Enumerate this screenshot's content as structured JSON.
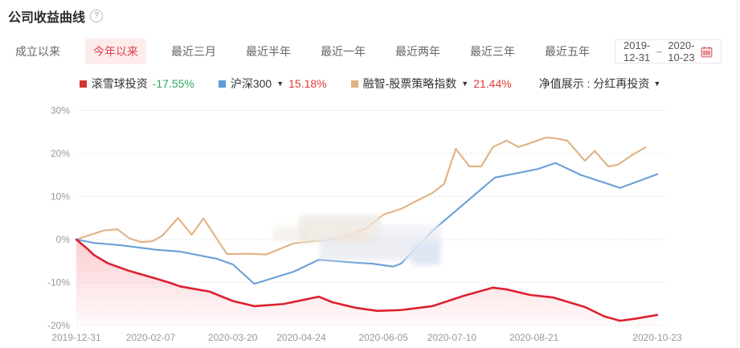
{
  "header": {
    "title": "公司收益曲线",
    "help_icon": "?"
  },
  "tabs": [
    {
      "label": "成立以来",
      "active": false
    },
    {
      "label": "今年以来",
      "active": true
    },
    {
      "label": "最近三月",
      "active": false
    },
    {
      "label": "最近半年",
      "active": false
    },
    {
      "label": "最近一年",
      "active": false
    },
    {
      "label": "最近两年",
      "active": false
    },
    {
      "label": "最近三年",
      "active": false
    },
    {
      "label": "最近五年",
      "active": false
    }
  ],
  "date_range": {
    "start": "2019-12-31",
    "separator": "~",
    "end": "2020-10-23"
  },
  "legend": [
    {
      "name": "滚雪球投资",
      "caret": "",
      "value": "-17.55%",
      "marker_color": "#d5342e",
      "value_color": "#2eab5e"
    },
    {
      "name": "沪深300",
      "caret": "▼",
      "value": "15.18%",
      "marker_color": "#5e9bd8",
      "value_color": "#e23b3b"
    },
    {
      "name": "融智-股票策略指数",
      "caret": "▼",
      "value": "21.44%",
      "marker_color": "#e2b184",
      "value_color": "#e23b3b"
    }
  ],
  "nav_display": {
    "label": "净值展示 : 分红再投资",
    "caret": "▼"
  },
  "chart_data": {
    "type": "line",
    "title": "公司收益曲线",
    "grid": true,
    "legend_position": "top",
    "y_axis": {
      "unit": "%",
      "ylim": [
        -20,
        30
      ],
      "ticks": [
        30,
        20,
        10,
        0,
        -10,
        -20
      ],
      "tick_suffix": "%"
    },
    "x_axis": {
      "type": "time",
      "total_days": 297,
      "ticks": [
        {
          "label": "2019-12-31",
          "day": 0
        },
        {
          "label": "2020-02-07",
          "day": 38
        },
        {
          "label": "2020-03-20",
          "day": 80
        },
        {
          "label": "2020-04-24",
          "day": 115
        },
        {
          "label": "2020-06-05",
          "day": 157
        },
        {
          "label": "2020-07-10",
          "day": 192
        },
        {
          "label": "2020-08-21",
          "day": 234
        },
        {
          "label": "2020-10-23",
          "day": 297
        }
      ]
    },
    "series": [
      {
        "name": "滚雪球投资",
        "color": "#dc2130",
        "final_value": -17.55,
        "area_fill": true,
        "points": [
          [
            0,
            0
          ],
          [
            6,
            -2.3
          ],
          [
            9,
            -3.6
          ],
          [
            16,
            -5.5
          ],
          [
            27,
            -7.3
          ],
          [
            40,
            -9.0
          ],
          [
            48,
            -10.1
          ],
          [
            53,
            -10.9
          ],
          [
            68,
            -12.1
          ],
          [
            80,
            -14.3
          ],
          [
            91,
            -15.5
          ],
          [
            106,
            -15.0
          ],
          [
            124,
            -13.3
          ],
          [
            131,
            -14.6
          ],
          [
            143,
            -15.9
          ],
          [
            154,
            -16.6
          ],
          [
            166,
            -16.4
          ],
          [
            182,
            -15.5
          ],
          [
            198,
            -13.1
          ],
          [
            213,
            -11.2
          ],
          [
            220,
            -11.6
          ],
          [
            232,
            -12.9
          ],
          [
            244,
            -13.5
          ],
          [
            260,
            -15.7
          ],
          [
            270,
            -17.9
          ],
          [
            278,
            -18.9
          ],
          [
            286,
            -18.4
          ],
          [
            297,
            -17.55
          ]
        ]
      },
      {
        "name": "沪深300",
        "color": "#6a9fd8",
        "final_value": 15.18,
        "area_fill": false,
        "points": [
          [
            0,
            0
          ],
          [
            9,
            -0.8
          ],
          [
            22,
            -1.3
          ],
          [
            41,
            -2.4
          ],
          [
            53,
            -2.8
          ],
          [
            72,
            -4.5
          ],
          [
            80,
            -5.8
          ],
          [
            91,
            -10.3
          ],
          [
            111,
            -7.5
          ],
          [
            124,
            -4.7
          ],
          [
            143,
            -5.4
          ],
          [
            151,
            -5.6
          ],
          [
            162,
            -6.3
          ],
          [
            166,
            -5.6
          ],
          [
            183,
            2.4
          ],
          [
            214,
            14.4
          ],
          [
            236,
            16.4
          ],
          [
            245,
            17.8
          ],
          [
            258,
            15.0
          ],
          [
            278,
            12.0
          ],
          [
            297,
            15.18
          ]
        ]
      },
      {
        "name": "融智-股票策略指数",
        "color": "#e2b184",
        "final_value": 21.44,
        "area_fill": false,
        "points": [
          [
            0,
            0
          ],
          [
            8,
            1.2
          ],
          [
            14,
            2.1
          ],
          [
            21,
            2.4
          ],
          [
            27,
            0.3
          ],
          [
            33,
            -0.6
          ],
          [
            39,
            -0.4
          ],
          [
            44,
            0.9
          ],
          [
            52,
            5.0
          ],
          [
            59,
            1.1
          ],
          [
            65,
            4.9
          ],
          [
            77,
            -3.4
          ],
          [
            88,
            -3.3
          ],
          [
            97,
            -3.5
          ],
          [
            111,
            -0.9
          ],
          [
            123,
            -0.3
          ],
          [
            134,
            0.2
          ],
          [
            148,
            2.5
          ],
          [
            157,
            5.8
          ],
          [
            166,
            7.1
          ],
          [
            174,
            9.0
          ],
          [
            182,
            10.8
          ],
          [
            188,
            12.9
          ],
          [
            194,
            21.1
          ],
          [
            201,
            17.0
          ],
          [
            207,
            17.0
          ],
          [
            213,
            21.5
          ],
          [
            220,
            23.0
          ],
          [
            226,
            21.5
          ],
          [
            230,
            22.1
          ],
          [
            240,
            23.7
          ],
          [
            244,
            23.6
          ],
          [
            251,
            23.0
          ],
          [
            260,
            18.3
          ],
          [
            265,
            20.6
          ],
          [
            272,
            17.0
          ],
          [
            277,
            17.4
          ],
          [
            284,
            19.6
          ],
          [
            291,
            21.44
          ]
        ]
      }
    ]
  }
}
